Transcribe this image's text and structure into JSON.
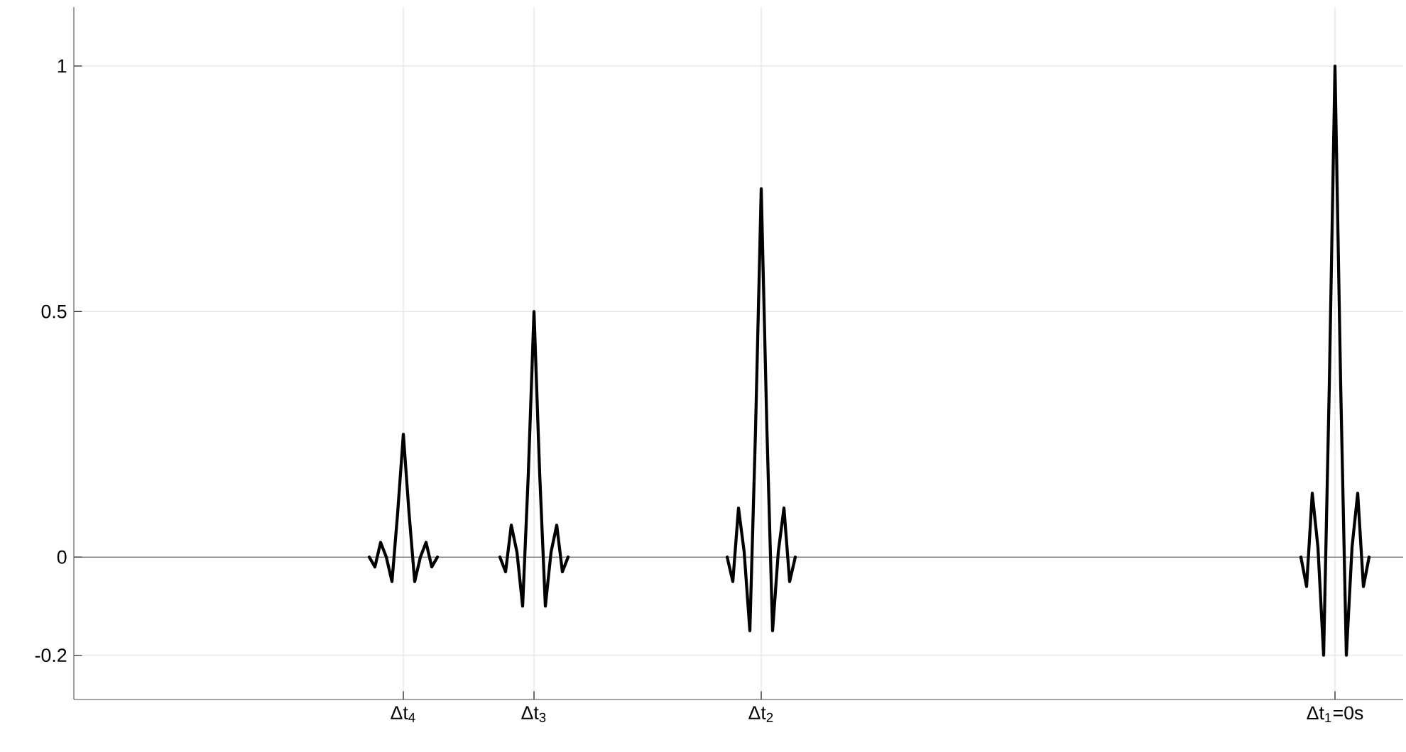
{
  "chart_data": {
    "type": "line",
    "grid": true,
    "ylim": [
      -0.29,
      1.12
    ],
    "yticks": [
      -0.2,
      0,
      0.5,
      1
    ],
    "ref_lines": [
      {
        "axis": "y",
        "value": 0,
        "color": "#404040"
      }
    ],
    "categories": [
      null,
      null,
      null,
      null,
      null,
      null,
      null,
      null,
      null,
      null,
      null,
      null,
      null,
      null,
      null,
      null,
      null,
      null,
      null,
      null,
      null,
      null,
      null,
      null,
      null,
      null,
      null,
      null,
      null,
      null,
      null,
      null,
      null,
      null,
      null,
      null,
      null,
      null,
      null,
      null,
      null,
      null,
      null,
      null,
      null,
      null,
      null,
      null,
      null,
      null,
      null,
      null,
      null,
      null,
      null,
      null,
      null,
      null,
      "Δt$_{4}$",
      null,
      null,
      null,
      null,
      null,
      null,
      null,
      null,
      null,
      null,
      null,
      null,
      null,
      null,
      null,
      null,
      null,
      null,
      null,
      null,
      null,
      null,
      "Δt$_{3}$",
      null,
      null,
      null,
      null,
      null,
      null,
      null,
      null,
      null,
      null,
      null,
      null,
      null,
      null,
      null,
      null,
      null,
      null,
      null,
      null,
      null,
      null,
      null,
      null,
      null,
      null,
      null,
      null,
      null,
      null,
      null,
      null,
      null,
      null,
      null,
      null,
      null,
      null,
      null,
      "Δt$_{2}$",
      null,
      null,
      null,
      null,
      null,
      null,
      null,
      null,
      null,
      null,
      null,
      null,
      null,
      null,
      null,
      null,
      null,
      null,
      null,
      null,
      null,
      null,
      null,
      null,
      null,
      null,
      null,
      null,
      null,
      null,
      null,
      null,
      null,
      null,
      null,
      null,
      null,
      null,
      null,
      null,
      null,
      null,
      null,
      null,
      null,
      null,
      null,
      null,
      null,
      null,
      null,
      null,
      null,
      null,
      null,
      null,
      null,
      null,
      null,
      null,
      null,
      null,
      null,
      null,
      null,
      null,
      null,
      null,
      null,
      null,
      null,
      null,
      null,
      null,
      null,
      null,
      null,
      null,
      null,
      null,
      null,
      null,
      null,
      null,
      null,
      null,
      null,
      null,
      null,
      null,
      null,
      null,
      null,
      null,
      null,
      null,
      null,
      null,
      null,
      null,
      "Δt$_{1}$=0s",
      null,
      null,
      null,
      null,
      null,
      null,
      null,
      null,
      null,
      null,
      null,
      null
    ],
    "series": [
      {
        "color": "#000000",
        "values": [
          null,
          null,
          null,
          null,
          null,
          null,
          null,
          null,
          null,
          null,
          null,
          null,
          null,
          null,
          null,
          null,
          null,
          null,
          null,
          null,
          null,
          null,
          null,
          null,
          null,
          null,
          null,
          null,
          null,
          null,
          null,
          null,
          null,
          null,
          null,
          null,
          null,
          null,
          null,
          null,
          null,
          null,
          null,
          null,
          null,
          null,
          null,
          null,
          null,
          null,
          null,
          null,
          0,
          -0.02,
          0.03,
          0,
          -0.05,
          0.09,
          0.25,
          0.09,
          -0.05,
          0,
          0.03,
          -0.02,
          0,
          null,
          null,
          null,
          null,
          null,
          null,
          null,
          null,
          null,
          null,
          0,
          -0.03,
          0.065,
          0.01,
          -0.1,
          0.17,
          0.5,
          0.17,
          -0.1,
          0.01,
          0.065,
          -0.03,
          0,
          null,
          null,
          null,
          null,
          null,
          null,
          null,
          null,
          null,
          null,
          null,
          null,
          null,
          null,
          null,
          null,
          null,
          null,
          null,
          null,
          null,
          null,
          null,
          null,
          null,
          null,
          null,
          0,
          -0.05,
          0.1,
          0.01,
          -0.15,
          0.26,
          0.75,
          0.26,
          -0.15,
          0.01,
          0.1,
          -0.05,
          0,
          null,
          null,
          null,
          null,
          null,
          null,
          null,
          null,
          null,
          null,
          null,
          null,
          null,
          null,
          null,
          null,
          null,
          null,
          null,
          null,
          null,
          null,
          null,
          null,
          null,
          null,
          null,
          null,
          null,
          null,
          null,
          null,
          null,
          null,
          null,
          null,
          null,
          null,
          null,
          null,
          null,
          null,
          null,
          null,
          null,
          null,
          null,
          null,
          null,
          null,
          null,
          null,
          null,
          null,
          null,
          null,
          null,
          null,
          null,
          null,
          null,
          null,
          null,
          null,
          null,
          null,
          null,
          null,
          null,
          null,
          null,
          null,
          null,
          null,
          null,
          null,
          null,
          null,
          null,
          null,
          null,
          null,
          null,
          null,
          null,
          null,
          null,
          null,
          0,
          -0.06,
          0.13,
          0.02,
          -0.2,
          0.35,
          1,
          0.35,
          -0.2,
          0.02,
          0.13,
          -0.06,
          0,
          null,
          null,
          null,
          null,
          null,
          null
        ]
      }
    ]
  }
}
